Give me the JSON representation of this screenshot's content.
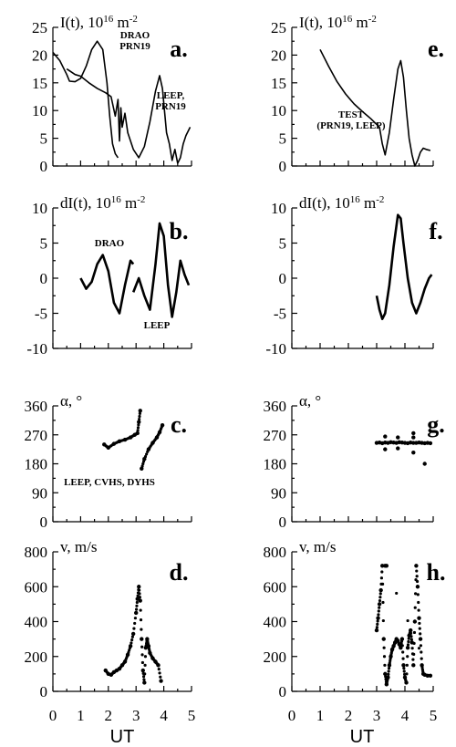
{
  "figure": {
    "xlabel": "UT",
    "xticks": [
      "0",
      "1",
      "2",
      "3",
      "4",
      "5"
    ]
  },
  "chart_data": [
    {
      "type": "line",
      "panel": "a.",
      "title": "I(t), 10^16 m^-2",
      "ylim": [
        0,
        25
      ],
      "xlim": [
        0,
        5
      ],
      "yticks": [
        "0",
        "5",
        "10",
        "15",
        "20",
        "25"
      ],
      "annotations": [
        {
          "lines": [
            "DRAO",
            "PRN19"
          ]
        },
        {
          "lines": [
            "LEEP,",
            "PRN19"
          ]
        }
      ],
      "series": [
        {
          "name": "DRAO",
          "x": [
            0.0,
            0.25,
            0.5,
            0.6,
            0.8,
            1.0,
            1.2,
            1.4,
            1.6,
            1.8,
            1.95,
            2.05,
            2.15,
            2.25,
            2.35
          ],
          "y": [
            20.5,
            19.0,
            16.5,
            15.3,
            15.2,
            15.8,
            18.0,
            21.0,
            22.5,
            21.0,
            15.0,
            9.0,
            4.0,
            2.2,
            1.5
          ]
        },
        {
          "name": "LEEP, PRN19",
          "x": [
            0.5,
            0.8,
            1.0,
            1.3,
            1.6,
            1.9,
            2.1,
            2.25,
            2.35,
            2.4,
            2.45,
            2.5,
            2.6,
            2.7,
            2.9,
            3.1,
            3.3,
            3.5,
            3.7,
            3.85,
            3.95,
            4.1,
            4.2,
            4.3,
            4.4,
            4.5,
            4.6,
            4.7,
            4.8,
            4.95
          ],
          "y": [
            17.5,
            16.5,
            16.2,
            15.0,
            14.0,
            13.2,
            12.5,
            9.0,
            12.0,
            4.5,
            10.5,
            7.0,
            9.5,
            6.0,
            3.0,
            1.5,
            3.5,
            8.0,
            13.5,
            16.3,
            14.0,
            6.0,
            4.0,
            1.0,
            3.0,
            0.5,
            1.5,
            4.0,
            5.5,
            7.0
          ]
        }
      ]
    },
    {
      "type": "line",
      "panel": "b.",
      "title": "dI(t), 10^16 m^-2",
      "ylim": [
        -10,
        10
      ],
      "xlim": [
        0,
        5
      ],
      "yticks": [
        "-10",
        "-5",
        "0",
        "5",
        "10"
      ],
      "annotations": [
        {
          "lines": [
            "DRAO"
          ]
        },
        {
          "lines": [
            "LEEP"
          ]
        }
      ],
      "series": [
        {
          "name": "DRAO",
          "x": [
            1.0,
            1.2,
            1.4,
            1.6,
            1.8,
            2.0,
            2.2,
            2.4,
            2.6,
            2.8,
            2.9
          ],
          "y": [
            0.0,
            -1.5,
            -0.5,
            2.0,
            3.3,
            1.0,
            -3.5,
            -5.0,
            -1.0,
            2.5,
            2.0
          ]
        },
        {
          "name": "LEEP",
          "x": [
            2.9,
            3.1,
            3.3,
            3.5,
            3.7,
            3.85,
            4.0,
            4.15,
            4.3,
            4.45,
            4.6,
            4.75,
            4.9
          ],
          "y": [
            -2.0,
            0.0,
            -2.5,
            -4.5,
            2.0,
            7.8,
            6.0,
            -1.0,
            -5.5,
            -2.0,
            2.5,
            0.5,
            -1.0
          ]
        }
      ]
    },
    {
      "type": "scatter",
      "panel": "c.",
      "title": "α, °",
      "ylim": [
        0,
        360
      ],
      "xlim": [
        0,
        5
      ],
      "yticks": [
        "0",
        "90",
        "180",
        "270",
        "360"
      ],
      "annotations": [
        {
          "lines": [
            "LEEP, CVHS, DYHS"
          ]
        }
      ],
      "series": [
        {
          "x": [
            1.85,
            2.0,
            2.2,
            2.4,
            2.6,
            2.8,
            2.95,
            3.05,
            3.1,
            3.15
          ],
          "y": [
            240,
            230,
            242,
            250,
            255,
            262,
            270,
            275,
            310,
            345
          ]
        },
        {
          "x": [
            3.2,
            3.3,
            3.45,
            3.6,
            3.75,
            3.85,
            3.95
          ],
          "y": [
            165,
            195,
            225,
            245,
            262,
            278,
            300
          ]
        }
      ]
    },
    {
      "type": "scatter",
      "panel": "d.",
      "title": "v, m/s",
      "ylim": [
        0,
        800
      ],
      "xlim": [
        0,
        5
      ],
      "yticks": [
        "0",
        "200",
        "400",
        "600",
        "800"
      ],
      "annotations": [],
      "series": [
        {
          "x": [
            1.9,
            2.0,
            2.1,
            2.2,
            2.3,
            2.4,
            2.5,
            2.6,
            2.7,
            2.8,
            2.9,
            3.0,
            3.05,
            3.1,
            3.15,
            3.2,
            3.25,
            3.3,
            3.35,
            3.4,
            3.45,
            3.5,
            3.6,
            3.7,
            3.8,
            3.9
          ],
          "y": [
            120,
            100,
            95,
            110,
            120,
            130,
            150,
            170,
            210,
            260,
            330,
            450,
            530,
            600,
            520,
            300,
            120,
            50,
            250,
            300,
            260,
            220,
            190,
            170,
            150,
            60
          ]
        }
      ]
    },
    {
      "type": "line",
      "panel": "e.",
      "title": "I(t), 10^16 m^-2",
      "ylim": [
        0,
        25
      ],
      "xlim": [
        0,
        5
      ],
      "yticks": [
        "0",
        "5",
        "10",
        "15",
        "20",
        "25"
      ],
      "annotations": [
        {
          "lines": [
            "TEST",
            "(PRN19, LEEP)"
          ]
        }
      ],
      "series": [
        {
          "x": [
            1.0,
            1.3,
            1.6,
            1.9,
            2.2,
            2.5,
            2.8,
            3.0,
            3.1,
            3.2,
            3.3,
            3.45,
            3.6,
            3.75,
            3.85,
            3.95,
            4.05,
            4.15,
            4.25,
            4.35,
            4.45,
            4.55,
            4.65,
            4.75,
            4.9
          ],
          "y": [
            21.0,
            18.0,
            15.2,
            13.0,
            11.2,
            9.8,
            8.5,
            7.5,
            7.0,
            4.0,
            2.0,
            6.0,
            12.0,
            17.5,
            19.0,
            16.0,
            10.0,
            5.0,
            2.0,
            0.0,
            1.0,
            2.5,
            3.2,
            3.0,
            2.8
          ]
        }
      ]
    },
    {
      "type": "line",
      "panel": "f.",
      "title": "dI(t), 10^16 m^-2",
      "ylim": [
        -10,
        10
      ],
      "xlim": [
        0,
        5
      ],
      "yticks": [
        "-10",
        "-5",
        "0",
        "5",
        "10"
      ],
      "annotations": [],
      "series": [
        {
          "x": [
            3.0,
            3.1,
            3.2,
            3.3,
            3.45,
            3.6,
            3.75,
            3.85,
            3.95,
            4.1,
            4.25,
            4.4,
            4.55,
            4.7,
            4.85,
            4.95
          ],
          "y": [
            -2.5,
            -4.5,
            -5.8,
            -5.0,
            -1.0,
            4.5,
            9.0,
            8.5,
            5.0,
            0.0,
            -3.5,
            -5.0,
            -3.5,
            -1.5,
            0.0,
            0.5
          ]
        }
      ]
    },
    {
      "type": "scatter",
      "panel": "g.",
      "title": "α, °",
      "ylim": [
        0,
        360
      ],
      "xlim": [
        0,
        5
      ],
      "yticks": [
        "0",
        "90",
        "180",
        "270",
        "360"
      ],
      "annotations": [],
      "series": [
        {
          "x": [
            3.0,
            3.1,
            3.2,
            3.3,
            3.4,
            3.5,
            3.6,
            3.7,
            3.8,
            3.9,
            4.0,
            4.1,
            4.2,
            4.3,
            4.4,
            4.5,
            4.6,
            4.7,
            4.8,
            4.9,
            3.3,
            3.3,
            3.75,
            3.75,
            4.3,
            4.3,
            4.3,
            4.7
          ],
          "y": [
            245,
            246,
            244,
            246,
            245,
            247,
            246,
            245,
            247,
            246,
            245,
            244,
            246,
            245,
            245,
            246,
            245,
            244,
            245,
            244,
            225,
            265,
            228,
            262,
            215,
            262,
            275,
            180
          ]
        }
      ]
    },
    {
      "type": "scatter",
      "panel": "h.",
      "title": "v, m/s",
      "ylim": [
        0,
        800
      ],
      "xlim": [
        0,
        5
      ],
      "yticks": [
        "0",
        "200",
        "400",
        "600",
        "800"
      ],
      "annotations": [],
      "series": [
        {
          "x": [
            3.0,
            3.05,
            3.1,
            3.15,
            3.2,
            3.25,
            3.3,
            3.35,
            3.4,
            3.45,
            3.5,
            3.55,
            3.6,
            3.65,
            3.7,
            3.75,
            3.8,
            3.85,
            3.9,
            3.95,
            4.0,
            4.05,
            4.1,
            4.15,
            4.2,
            4.25,
            4.3,
            4.35,
            4.4,
            4.45,
            4.5,
            4.55,
            4.6,
            4.65,
            4.7,
            4.8,
            4.9,
            3.3,
            3.35
          ],
          "y": [
            350,
            420,
            500,
            580,
            720,
            300,
            100,
            40,
            80,
            150,
            200,
            240,
            260,
            280,
            300,
            290,
            270,
            250,
            300,
            150,
            80,
            50,
            250,
            320,
            350,
            280,
            150,
            400,
            720,
            600,
            420,
            300,
            150,
            100,
            95,
            90,
            90,
            720,
            720
          ]
        }
      ]
    }
  ]
}
